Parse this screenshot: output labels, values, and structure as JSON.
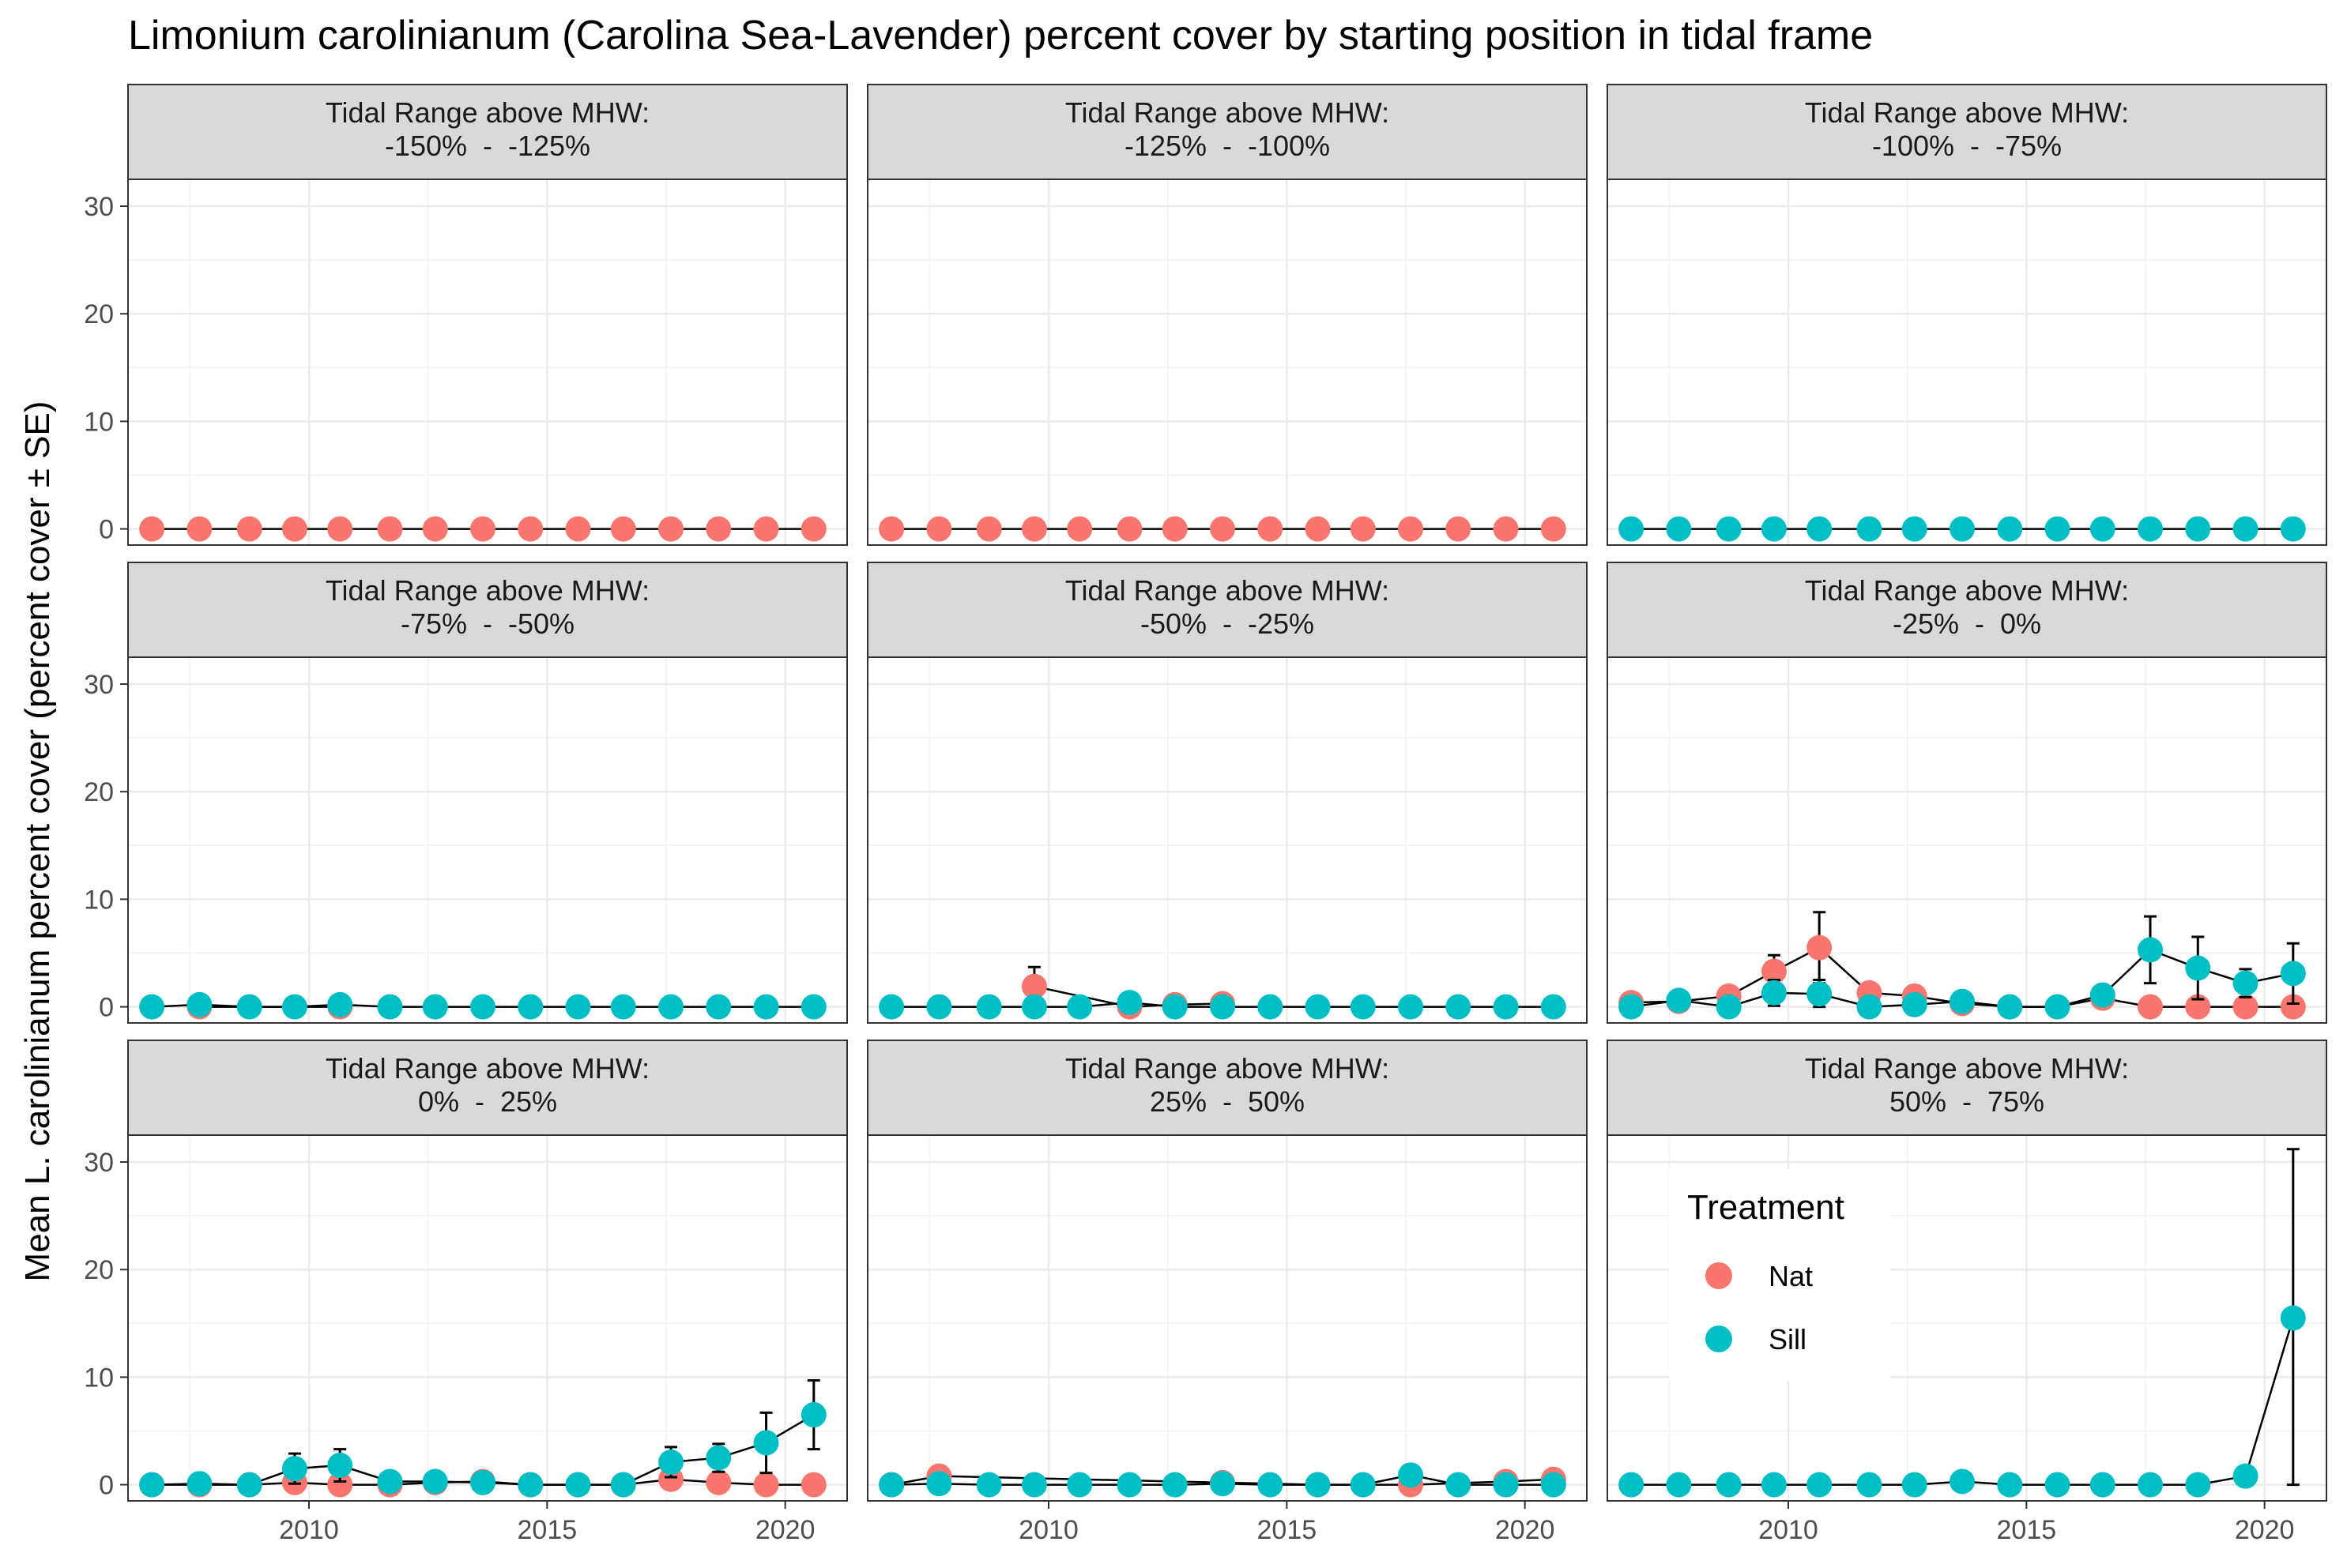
{
  "chart_data": {
    "type": "scatter",
    "title": "Limonium carolinianum (Carolina Sea-Lavender) percent cover by starting position in tidal frame",
    "xlabel": "",
    "ylabel": "Mean L. carolinianum percent cover (percent cover ± SE)",
    "x_ticks": [
      2010,
      2015,
      2020
    ],
    "y_ticks": [
      0,
      10,
      20,
      30
    ],
    "xlim": [
      2006.2,
      2021.3
    ],
    "ylim": [
      -1.5,
      32.5
    ],
    "grid": true,
    "legend": {
      "title": "Treatment",
      "position": "inside-bottom-right-panel",
      "entries": [
        {
          "name": "Nat",
          "color": "#F8766D"
        },
        {
          "name": "Sill",
          "color": "#00BFC4"
        }
      ]
    },
    "facet_label_prefix": "Tidal Range above MHW:",
    "panels": [
      {
        "label": "-150%  -  -125%",
        "series": [
          {
            "name": "Nat",
            "x": [
              2006.7,
              2007.7,
              2008.75,
              2009.7,
              2010.65,
              2011.7,
              2012.65,
              2013.65,
              2014.65,
              2015.65,
              2016.6,
              2017.6,
              2018.6,
              2019.6,
              2020.6
            ],
            "y": [
              0,
              0,
              0,
              0,
              0,
              0,
              0,
              0,
              0,
              0,
              0,
              0,
              0,
              0,
              0
            ],
            "se": [
              0,
              0,
              0,
              0,
              0,
              0,
              0,
              0,
              0,
              0,
              0,
              0,
              0,
              0,
              0
            ]
          }
        ]
      },
      {
        "label": "-125%  -  -100%",
        "series": [
          {
            "name": "Nat",
            "x": [
              2006.7,
              2007.7,
              2008.75,
              2009.7,
              2010.65,
              2011.7,
              2012.65,
              2013.65,
              2014.65,
              2015.65,
              2016.6,
              2017.6,
              2018.6,
              2019.6,
              2020.6
            ],
            "y": [
              0,
              0,
              0,
              0,
              0,
              0,
              0,
              0,
              0,
              0,
              0,
              0,
              0,
              0,
              0
            ],
            "se": [
              0,
              0,
              0,
              0,
              0,
              0,
              0,
              0,
              0,
              0,
              0,
              0,
              0,
              0,
              0
            ]
          }
        ]
      },
      {
        "label": "-100%  -  -75%",
        "series": [
          {
            "name": "Sill",
            "x": [
              2006.7,
              2007.7,
              2008.75,
              2009.7,
              2010.65,
              2011.7,
              2012.65,
              2013.65,
              2014.65,
              2015.65,
              2016.6,
              2017.6,
              2018.6,
              2019.6,
              2020.6
            ],
            "y": [
              0,
              0,
              0,
              0,
              0,
              0,
              0,
              0,
              0,
              0,
              0,
              0,
              0,
              0,
              0
            ],
            "se": [
              0,
              0,
              0,
              0,
              0,
              0,
              0,
              0,
              0,
              0,
              0,
              0,
              0,
              0,
              0
            ]
          }
        ]
      },
      {
        "label": "-75%  -  -50%",
        "series": [
          {
            "name": "Nat",
            "x": [
              2007.7,
              2010.65
            ],
            "y": [
              0,
              0
            ],
            "se": [
              0,
              0
            ]
          },
          {
            "name": "Sill",
            "x": [
              2006.7,
              2007.7,
              2008.75,
              2009.7,
              2010.65,
              2011.7,
              2012.65,
              2013.65,
              2014.65,
              2015.65,
              2016.6,
              2017.6,
              2018.6,
              2019.6,
              2020.6
            ],
            "y": [
              0,
              0.2,
              0,
              0,
              0.2,
              0,
              0,
              0,
              0,
              0,
              0,
              0,
              0,
              0,
              0
            ],
            "se": [
              0,
              0,
              0,
              0,
              0,
              0,
              0,
              0,
              0,
              0,
              0,
              0,
              0,
              0,
              0
            ]
          }
        ]
      },
      {
        "label": "-50%  -  -25%",
        "series": [
          {
            "name": "Nat",
            "x": [
              2009.7,
              2011.7,
              2012.65,
              2013.65
            ],
            "y": [
              1.9,
              0,
              0.2,
              0.3
            ],
            "se": [
              1.8,
              0,
              0,
              0
            ]
          },
          {
            "name": "Sill",
            "x": [
              2006.7,
              2007.7,
              2008.75,
              2009.7,
              2010.65,
              2011.7,
              2012.65,
              2013.65,
              2014.65,
              2015.65,
              2016.6,
              2017.6,
              2018.6,
              2019.6,
              2020.6
            ],
            "y": [
              0,
              0,
              0,
              0,
              0,
              0.4,
              0,
              0,
              0,
              0,
              0,
              0,
              0,
              0,
              0
            ],
            "se": [
              0,
              0,
              0,
              0,
              0,
              0,
              0,
              0,
              0,
              0,
              0,
              0,
              0,
              0,
              0
            ]
          }
        ]
      },
      {
        "label": "-25%  -  0%",
        "series": [
          {
            "name": "Nat",
            "x": [
              2006.7,
              2007.7,
              2008.75,
              2009.7,
              2010.65,
              2011.7,
              2012.65,
              2013.65,
              2014.65,
              2015.65,
              2016.6,
              2017.6,
              2018.6,
              2019.6,
              2020.6
            ],
            "y": [
              0.4,
              0.5,
              1.0,
              3.3,
              5.5,
              1.3,
              1.0,
              0.3,
              0,
              0,
              0.8,
              0,
              0,
              0,
              0
            ],
            "se": [
              0,
              0,
              0,
              1.5,
              3.3,
              0,
              0,
              0,
              0,
              0,
              0,
              0,
              0,
              0,
              0
            ]
          },
          {
            "name": "Sill",
            "x": [
              2006.7,
              2007.7,
              2008.75,
              2009.7,
              2010.65,
              2011.7,
              2012.65,
              2013.65,
              2014.65,
              2015.65,
              2016.6,
              2017.6,
              2018.6,
              2019.6,
              2020.6
            ],
            "y": [
              0,
              0.6,
              0,
              1.3,
              1.2,
              0,
              0.2,
              0.5,
              0,
              0,
              1.1,
              5.3,
              3.6,
              2.2,
              3.1
            ],
            "se": [
              0,
              0,
              0,
              1.2,
              1.3,
              0,
              0,
              0,
              0,
              0,
              0,
              3.1,
              2.9,
              1.3,
              2.8
            ]
          }
        ]
      },
      {
        "label": "0%  -  25%",
        "series": [
          {
            "name": "Nat",
            "x": [
              2006.7,
              2007.7,
              2008.75,
              2009.7,
              2010.65,
              2011.7,
              2012.65,
              2013.65,
              2014.65,
              2015.65,
              2016.6,
              2017.6,
              2018.6,
              2019.6,
              2020.6
            ],
            "y": [
              0,
              0,
              0,
              0.2,
              0,
              0,
              0.2,
              0.3,
              0,
              0,
              0,
              0.5,
              0.2,
              0,
              0
            ],
            "se": [
              0,
              0,
              0,
              0,
              0,
              0,
              0,
              0,
              0,
              0,
              0,
              0,
              0,
              0,
              0
            ]
          },
          {
            "name": "Sill",
            "x": [
              2006.7,
              2007.7,
              2008.75,
              2009.7,
              2010.65,
              2011.7,
              2012.65,
              2013.65,
              2014.65,
              2015.65,
              2016.6,
              2017.6,
              2018.6,
              2019.6,
              2020.6
            ],
            "y": [
              0,
              0.1,
              0,
              1.5,
              1.8,
              0.3,
              0.3,
              0.2,
              0,
              0,
              0,
              2.1,
              2.5,
              3.9,
              6.5
            ],
            "se": [
              0,
              0,
              0,
              1.4,
              1.5,
              0,
              0,
              0,
              0,
              0,
              0,
              1.4,
              1.3,
              2.8,
              3.2
            ]
          }
        ]
      },
      {
        "label": "25%  -  50%",
        "series": [
          {
            "name": "Nat",
            "x": [
              2006.7,
              2007.7,
              2013.65,
              2015.65,
              2017.6,
              2019.6,
              2020.6
            ],
            "y": [
              0,
              0.8,
              0.2,
              0,
              0,
              0.3,
              0.5
            ],
            "se": [
              0,
              0,
              0,
              0,
              0,
              0,
              0
            ]
          },
          {
            "name": "Sill",
            "x": [
              2006.7,
              2007.7,
              2008.75,
              2009.7,
              2010.65,
              2011.7,
              2012.65,
              2013.65,
              2014.65,
              2015.65,
              2016.6,
              2017.6,
              2018.6,
              2019.6,
              2020.6
            ],
            "y": [
              0,
              0.1,
              0,
              0,
              0,
              0,
              0,
              0.1,
              0,
              0,
              0,
              0.9,
              0,
              0,
              0
            ],
            "se": [
              0,
              0,
              0,
              0,
              0,
              0,
              0,
              0,
              0,
              0,
              0,
              0,
              0,
              0,
              0
            ]
          }
        ]
      },
      {
        "label": "50%  -  75%",
        "series": [
          {
            "name": "Sill",
            "x": [
              2006.7,
              2007.7,
              2008.75,
              2009.7,
              2010.65,
              2011.7,
              2012.65,
              2013.65,
              2014.65,
              2015.65,
              2016.6,
              2017.6,
              2018.6,
              2019.6,
              2020.6
            ],
            "y": [
              0,
              0,
              0,
              0,
              0,
              0,
              0,
              0.3,
              0,
              0,
              0,
              0,
              0,
              0.8,
              15.5
            ],
            "se": [
              0,
              0,
              0,
              0,
              0,
              0,
              0,
              0,
              0,
              0,
              0,
              0,
              0,
              0,
              15.7
            ]
          }
        ]
      }
    ]
  }
}
